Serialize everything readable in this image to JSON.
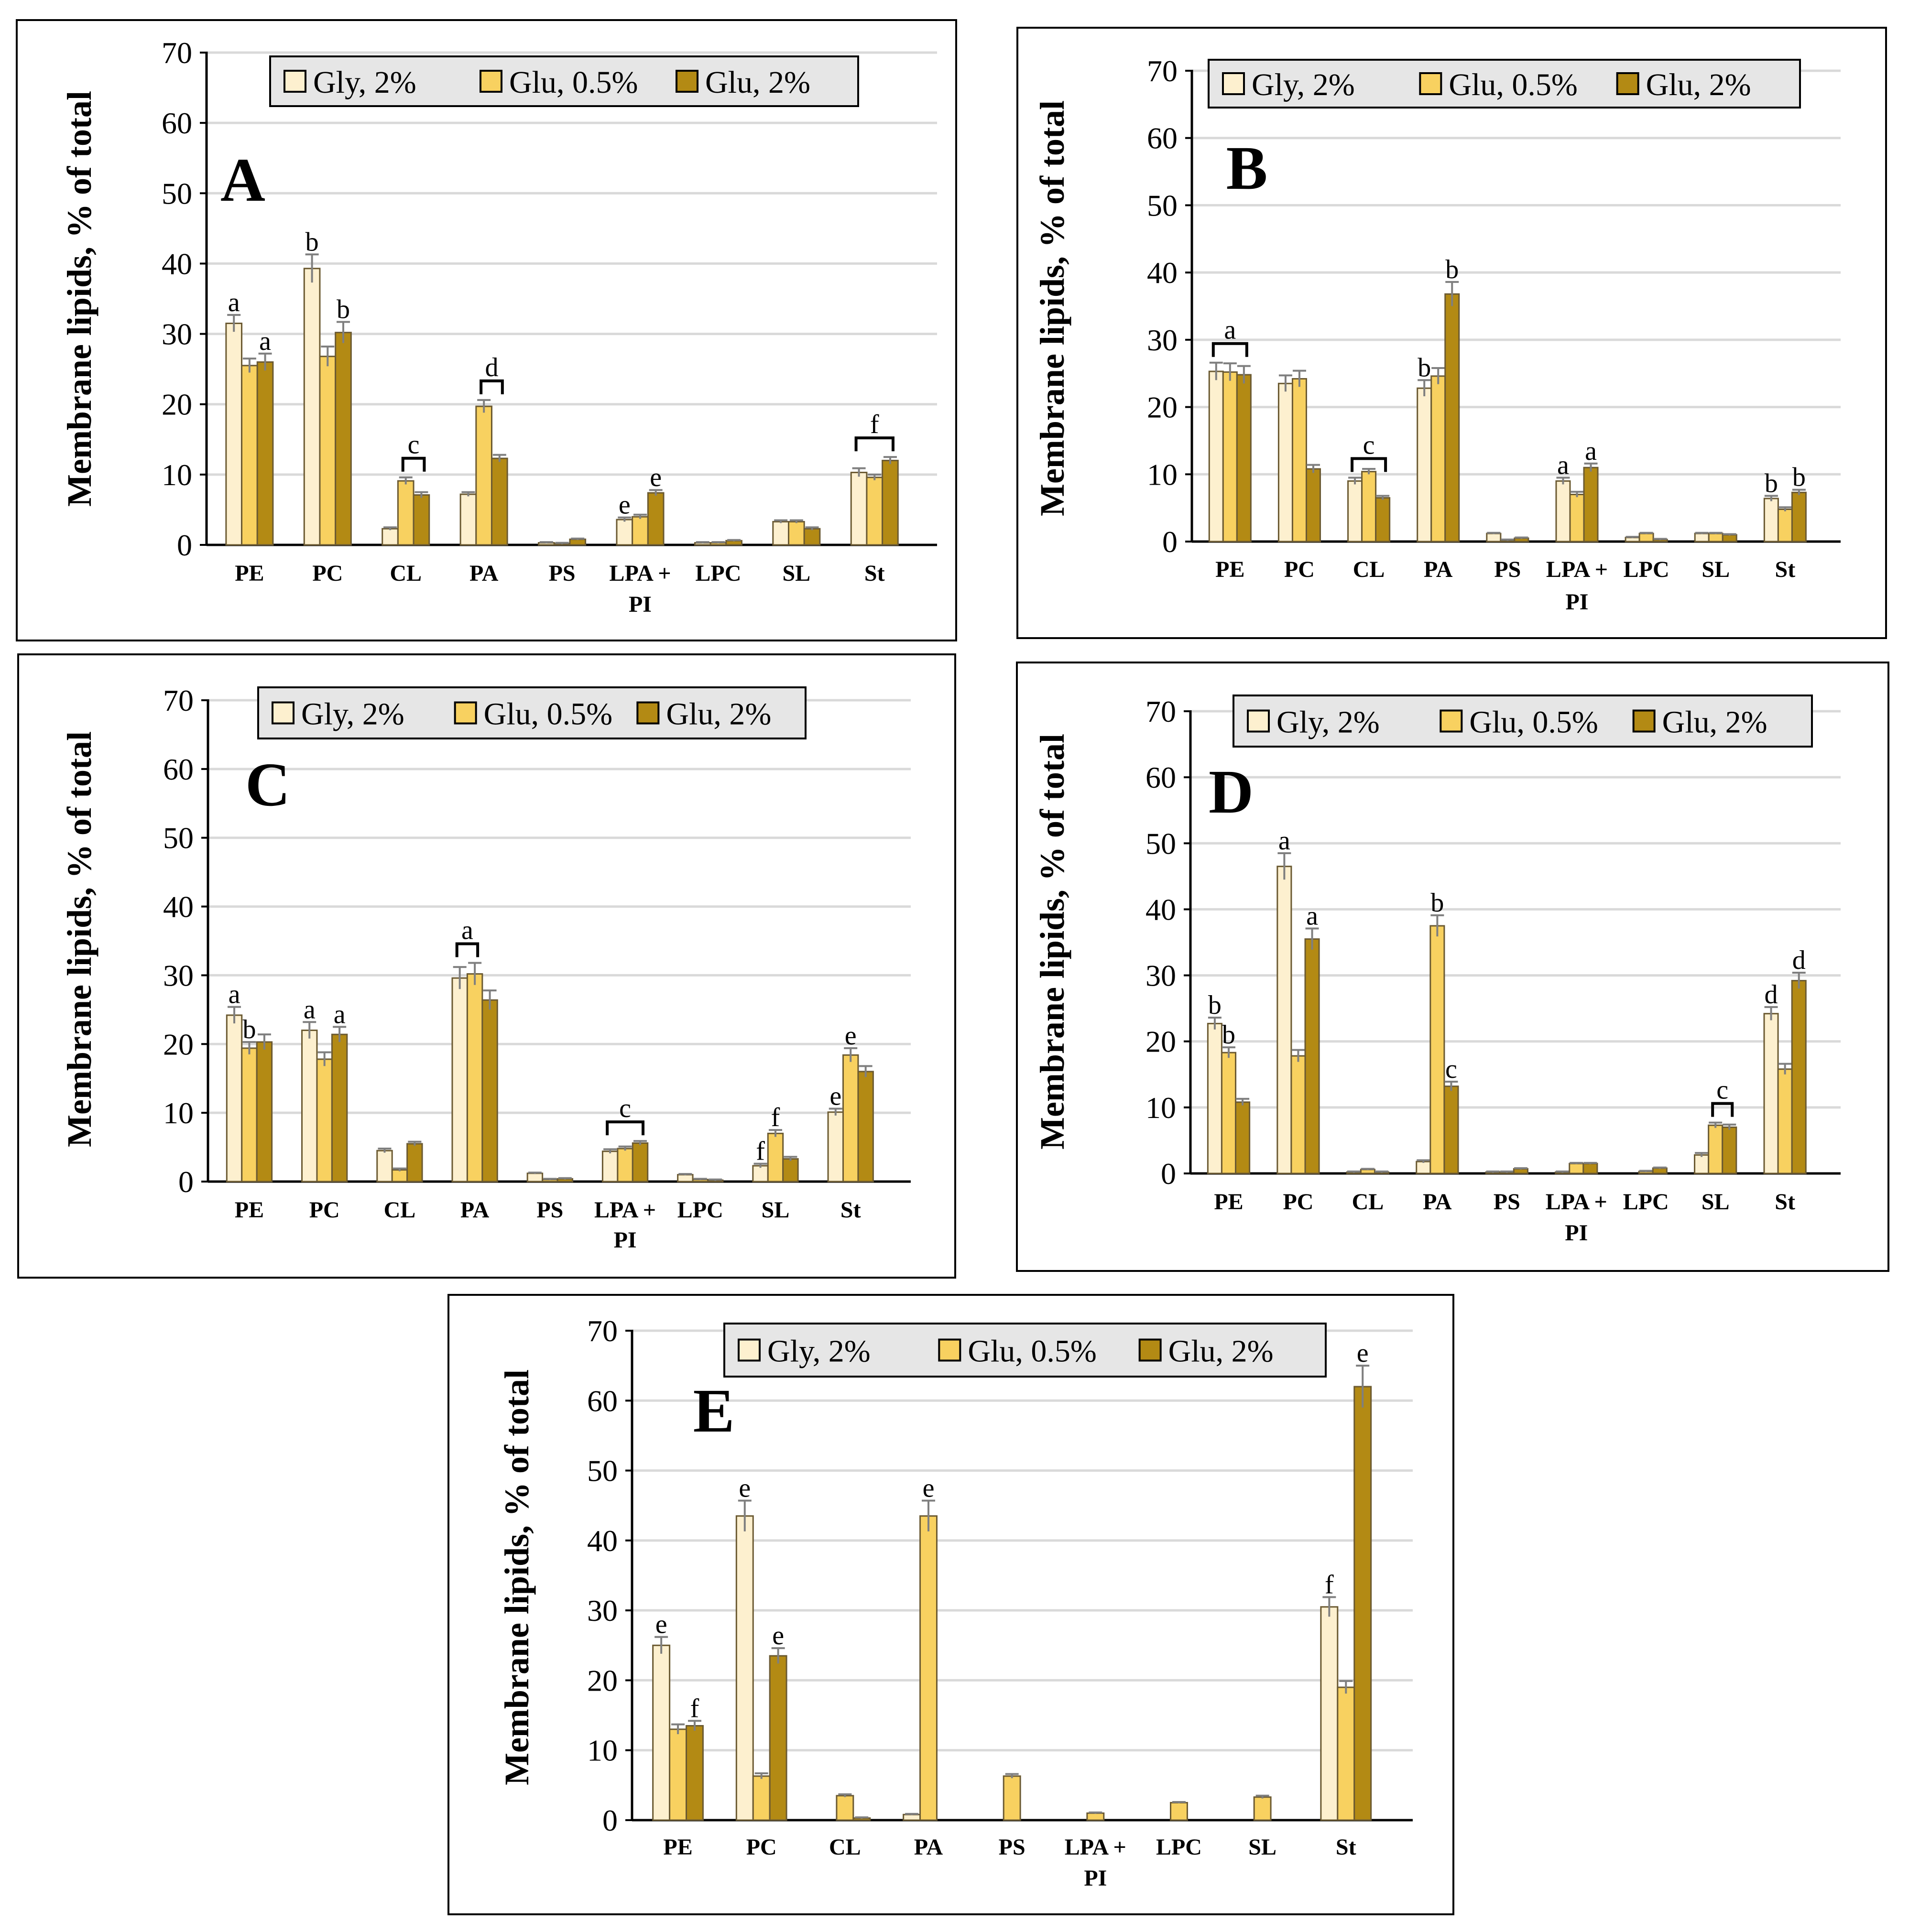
{
  "legend_labels": [
    "Gly, 2%",
    "Glu, 0.5%",
    "Glu, 2%"
  ],
  "ylabel": "Membrane lipids, % of total",
  "yticks": [
    "0",
    "10",
    "20",
    "30",
    "40",
    "50",
    "60",
    "70"
  ],
  "colors": {
    "series": [
      "#fdf0cf",
      "#f8d160",
      "#b38a14"
    ],
    "bar_stroke": "#6b5a32",
    "grid": "#d9d9d9",
    "axis": "#000000",
    "legend_bg": "#e6e6e6",
    "error": "#7f7f7f"
  },
  "chart_data": [
    {
      "type": "bar",
      "panel": "A",
      "categories": [
        "PE",
        "PC",
        "CL",
        "PA",
        "PS",
        "LPA + PI",
        "LPC",
        "SL",
        "St"
      ],
      "ylim": [
        0,
        70
      ],
      "series": [
        {
          "name": "Gly, 2%",
          "values": [
            31.5,
            39.3,
            2.3,
            7.2,
            0.3,
            3.6,
            0.3,
            3.3,
            10.3
          ],
          "errors": [
            1.2,
            2.0,
            0.2,
            0.3,
            0.1,
            0.3,
            0.1,
            0.2,
            0.6
          ]
        },
        {
          "name": "Glu, 0.5%",
          "values": [
            25.5,
            26.8,
            9.1,
            19.7,
            0.2,
            4.0,
            0.3,
            3.3,
            9.6
          ],
          "errors": [
            1.0,
            1.4,
            0.5,
            0.9,
            0.1,
            0.3,
            0.1,
            0.2,
            0.4
          ]
        },
        {
          "name": "Glu, 2%",
          "values": [
            26.0,
            30.2,
            7.1,
            12.3,
            0.8,
            7.4,
            0.6,
            2.3,
            12.0
          ],
          "errors": [
            1.2,
            1.5,
            0.4,
            0.5,
            0.1,
            0.4,
            0.1,
            0.2,
            0.5
          ]
        }
      ],
      "annotations": [
        {
          "text": "a",
          "cat": 0,
          "series": 0
        },
        {
          "text": "a",
          "cat": 0,
          "series": 2
        },
        {
          "text": "b",
          "cat": 1,
          "series": 0
        },
        {
          "text": "b",
          "cat": 1,
          "series": 2
        },
        {
          "text": "c",
          "cat": 2,
          "bracket": [
            1,
            2
          ]
        },
        {
          "text": "d",
          "cat": 3,
          "bracket": [
            1,
            2
          ]
        },
        {
          "text": "e",
          "cat": 5,
          "series": 0
        },
        {
          "text": "e",
          "cat": 5,
          "series": 2
        },
        {
          "text": "f",
          "cat": 8,
          "bracket": [
            0,
            2
          ]
        }
      ]
    },
    {
      "type": "bar",
      "panel": "B",
      "categories": [
        "PE",
        "PC",
        "CL",
        "PA",
        "PS",
        "LPA + PI",
        "LPC",
        "SL",
        "St"
      ],
      "ylim": [
        0,
        70
      ],
      "series": [
        {
          "name": "Gly, 2%",
          "values": [
            25.3,
            23.5,
            9.0,
            22.8,
            1.2,
            9.0,
            0.6,
            1.2,
            6.4
          ],
          "errors": [
            1.3,
            1.2,
            0.5,
            1.2,
            0.1,
            0.5,
            0.1,
            0.1,
            0.4
          ]
        },
        {
          "name": "Glu, 0.5%",
          "values": [
            25.2,
            24.2,
            10.4,
            24.6,
            0.2,
            7.0,
            1.2,
            1.2,
            4.8
          ],
          "errors": [
            1.3,
            1.2,
            0.4,
            1.2,
            0.1,
            0.4,
            0.1,
            0.1,
            0.3
          ]
        },
        {
          "name": "Glu, 2%",
          "values": [
            24.8,
            10.8,
            6.5,
            36.8,
            0.5,
            11.0,
            0.3,
            1.0,
            7.3
          ],
          "errors": [
            1.3,
            0.6,
            0.3,
            1.8,
            0.1,
            0.6,
            0.1,
            0.1,
            0.4
          ]
        }
      ],
      "annotations": [
        {
          "text": "a",
          "cat": 0,
          "bracket": [
            0,
            2
          ]
        },
        {
          "text": "c",
          "cat": 2,
          "bracket": [
            0,
            2
          ]
        },
        {
          "text": "b",
          "cat": 3,
          "series": 0
        },
        {
          "text": "b",
          "cat": 3,
          "series": 2
        },
        {
          "text": "a",
          "cat": 5,
          "series": 0
        },
        {
          "text": "a",
          "cat": 5,
          "series": 2
        },
        {
          "text": "b",
          "cat": 8,
          "series": 0
        },
        {
          "text": "b",
          "cat": 8,
          "series": 2
        }
      ]
    },
    {
      "type": "bar",
      "panel": "C",
      "categories": [
        "PE",
        "PC",
        "CL",
        "PA",
        "PS",
        "LPA + PI",
        "LPC",
        "SL",
        "St"
      ],
      "ylim": [
        0,
        70
      ],
      "series": [
        {
          "name": "Gly, 2%",
          "values": [
            24.2,
            22.0,
            4.5,
            29.6,
            1.2,
            4.4,
            1.0,
            2.3,
            10.1
          ],
          "errors": [
            1.2,
            1.2,
            0.3,
            1.6,
            0.1,
            0.3,
            0.1,
            0.3,
            0.5
          ]
        },
        {
          "name": "Glu, 0.5%",
          "values": [
            19.4,
            17.8,
            1.7,
            30.2,
            0.3,
            4.8,
            0.3,
            7.0,
            18.4
          ],
          "errors": [
            0.9,
            1.0,
            0.2,
            1.6,
            0.1,
            0.3,
            0.1,
            0.5,
            1.0
          ]
        },
        {
          "name": "Glu, 2%",
          "values": [
            20.3,
            21.4,
            5.5,
            26.4,
            0.4,
            5.6,
            0.2,
            3.3,
            16.0
          ],
          "errors": [
            1.1,
            1.1,
            0.3,
            1.4,
            0.1,
            0.3,
            0.1,
            0.3,
            0.8
          ]
        }
      ],
      "annotations": [
        {
          "text": "a",
          "cat": 0,
          "series": 0
        },
        {
          "text": "b",
          "cat": 0,
          "series": 1
        },
        {
          "text": "a",
          "cat": 1,
          "series": 0
        },
        {
          "text": "a",
          "cat": 1,
          "series": 2
        },
        {
          "text": "a",
          "cat": 3,
          "bracket": [
            0,
            1
          ]
        },
        {
          "text": "c",
          "cat": 5,
          "bracket": [
            0,
            2
          ]
        },
        {
          "text": "f",
          "cat": 7,
          "series": 0
        },
        {
          "text": "f",
          "cat": 7,
          "series": 1
        },
        {
          "text": "e",
          "cat": 8,
          "series": 0
        },
        {
          "text": "e",
          "cat": 8,
          "series": 1
        }
      ]
    },
    {
      "type": "bar",
      "panel": "D",
      "categories": [
        "PE",
        "PC",
        "CL",
        "PA",
        "PS",
        "LPA + PI",
        "LPC",
        "SL",
        "St"
      ],
      "ylim": [
        0,
        70
      ],
      "series": [
        {
          "name": "Gly, 2%",
          "values": [
            22.7,
            46.5,
            0.2,
            1.8,
            0.2,
            0.2,
            0.0,
            2.8,
            24.2
          ],
          "errors": [
            0.9,
            2.0,
            0.1,
            0.2,
            0.1,
            0.1,
            0.0,
            0.3,
            1.0
          ]
        },
        {
          "name": "Glu, 0.5%",
          "values": [
            18.3,
            17.8,
            0.6,
            37.5,
            0.2,
            1.5,
            0.3,
            7.3,
            15.8
          ],
          "errors": [
            0.8,
            0.9,
            0.1,
            1.6,
            0.1,
            0.1,
            0.1,
            0.4,
            0.8
          ]
        },
        {
          "name": "Glu, 2%",
          "values": [
            10.8,
            35.5,
            0.2,
            13.2,
            0.7,
            1.5,
            0.8,
            7.0,
            29.2
          ],
          "errors": [
            0.5,
            1.6,
            0.1,
            0.7,
            0.1,
            0.1,
            0.1,
            0.4,
            1.2
          ]
        }
      ],
      "annotations": [
        {
          "text": "b",
          "cat": 0,
          "series": 0
        },
        {
          "text": "b",
          "cat": 0,
          "series": 1
        },
        {
          "text": "a",
          "cat": 1,
          "series": 0
        },
        {
          "text": "a",
          "cat": 1,
          "series": 2
        },
        {
          "text": "b",
          "cat": 3,
          "series": 1
        },
        {
          "text": "c",
          "cat": 3,
          "series": 2
        },
        {
          "text": "c",
          "cat": 7,
          "bracket": [
            1,
            2
          ]
        },
        {
          "text": "d",
          "cat": 8,
          "series": 0
        },
        {
          "text": "d",
          "cat": 8,
          "series": 2
        }
      ]
    },
    {
      "type": "bar",
      "panel": "E",
      "categories": [
        "PE",
        "PC",
        "CL",
        "PA",
        "PS",
        "LPA + PI",
        "LPC",
        "SL",
        "St"
      ],
      "ylim": [
        0,
        70
      ],
      "series": [
        {
          "name": "Gly, 2%",
          "values": [
            25.0,
            43.5,
            0.0,
            0.8,
            0.0,
            0.0,
            0.0,
            0.0,
            30.5
          ],
          "errors": [
            1.2,
            2.2,
            0.0,
            0.1,
            0.0,
            0.0,
            0.0,
            0.0,
            1.4
          ]
        },
        {
          "name": "Glu, 0.5%",
          "values": [
            13.0,
            6.3,
            3.5,
            43.5,
            6.3,
            1.0,
            2.5,
            3.3,
            19.0
          ],
          "errors": [
            0.7,
            0.4,
            0.2,
            2.2,
            0.3,
            0.1,
            0.1,
            0.2,
            0.9
          ]
        },
        {
          "name": "Glu, 2%",
          "values": [
            13.5,
            23.5,
            0.3,
            0.0,
            0.0,
            0.0,
            0.0,
            0.0,
            62.0
          ],
          "errors": [
            0.7,
            1.1,
            0.1,
            0.0,
            0.0,
            0.0,
            0.0,
            0.0,
            3.0
          ]
        }
      ],
      "annotations": [
        {
          "text": "e",
          "cat": 0,
          "series": 0
        },
        {
          "text": "f",
          "cat": 0,
          "series": 2
        },
        {
          "text": "e",
          "cat": 1,
          "series": 0
        },
        {
          "text": "e",
          "cat": 1,
          "series": 2
        },
        {
          "text": "e",
          "cat": 3,
          "series": 1
        },
        {
          "text": "f",
          "cat": 8,
          "series": 0
        },
        {
          "text": "e",
          "cat": 8,
          "series": 2
        }
      ]
    }
  ]
}
